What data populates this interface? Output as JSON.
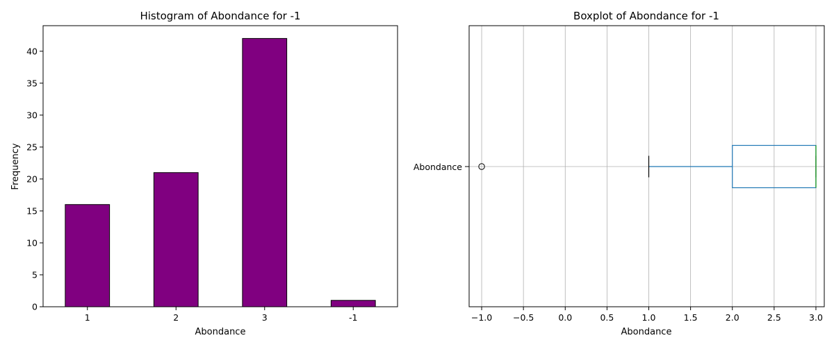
{
  "chart_data": [
    {
      "type": "bar",
      "title": "Histogram of Abondance for -1",
      "xlabel": "Abondance",
      "ylabel": "Frequency",
      "categories": [
        "1",
        "2",
        "3",
        "-1"
      ],
      "values": [
        16,
        21,
        42,
        1
      ],
      "ylim": [
        0,
        44
      ],
      "yticks": [
        0,
        5,
        10,
        15,
        20,
        25,
        30,
        35,
        40
      ],
      "grid": false,
      "bar_color": "#800080",
      "edge_color": "#000000"
    },
    {
      "type": "boxplot",
      "orientation": "horizontal",
      "title": "Boxplot of Abondance for -1",
      "xlabel": "Abondance",
      "category": "Abondance",
      "xlim": [
        -1.15,
        3.1
      ],
      "xticks": [
        -1.0,
        -0.5,
        0.0,
        0.5,
        1.0,
        1.5,
        2.0,
        2.5,
        3.0
      ],
      "stats": {
        "whislo": 1,
        "q1": 2,
        "median": 3,
        "q3": 3,
        "whishi": 3
      },
      "fliers": [
        -1
      ],
      "grid": true,
      "box_color": "#1f77b4",
      "median_color": "#2ca02c",
      "whisker_cap_color": "#000000"
    }
  ]
}
